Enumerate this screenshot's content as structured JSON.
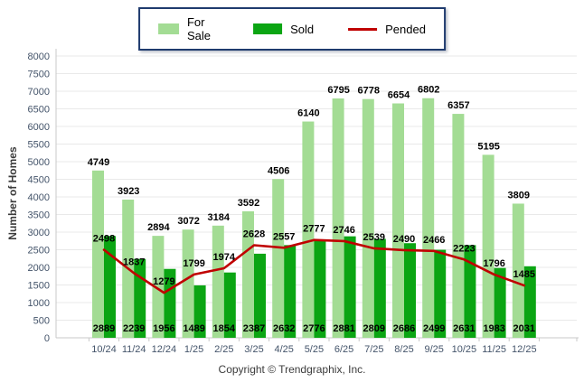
{
  "legend": {
    "position": "top-center",
    "items": [
      "For Sale",
      "Sold",
      "Pended"
    ]
  },
  "y_axis": {
    "title": "Number of Homes",
    "min": 0,
    "max": 8000,
    "step": 500
  },
  "footer": {
    "copyright": "Copyright © Trendgraphix, Inc."
  },
  "colors": {
    "for_sale": "#A3DC94",
    "sold": "#0BA513",
    "pended": "#C00000",
    "gridline": "#E9E9E9",
    "axis_line": "#C9C9C9",
    "tick_label": "#44546A",
    "value_label": "#000000",
    "legend_border": "#1F3B6E"
  },
  "chart_data": {
    "type": "bar",
    "subtype": "grouped bars with overlaid line",
    "categories": [
      "10/24",
      "11/24",
      "12/24",
      "1/25",
      "2/25",
      "3/25",
      "4/25",
      "5/25",
      "6/25",
      "7/25",
      "8/25",
      "9/25",
      "10/25",
      "11/25",
      "12/25"
    ],
    "series": [
      {
        "name": "For Sale",
        "type": "bar",
        "color": "#A3DC94",
        "values": [
          4749,
          3923,
          2894,
          3072,
          3184,
          3592,
          4506,
          6140,
          6795,
          6778,
          6654,
          6802,
          6357,
          5195,
          3809
        ]
      },
      {
        "name": "Sold",
        "type": "bar",
        "color": "#0BA513",
        "values": [
          2889,
          2239,
          1956,
          1489,
          1854,
          2387,
          2632,
          2776,
          2881,
          2809,
          2686,
          2499,
          2631,
          1983,
          2031
        ]
      },
      {
        "name": "Pended",
        "type": "line",
        "color": "#C00000",
        "values": [
          2498,
          1837,
          1279,
          1799,
          1974,
          2628,
          2557,
          2777,
          2746,
          2539,
          2490,
          2466,
          2223,
          1796,
          1485
        ]
      }
    ],
    "title": "",
    "xlabel": "",
    "ylabel": "Number of Homes",
    "ylim": [
      0,
      8000
    ],
    "ytick_step": 500,
    "grid": "horizontal",
    "legend_position": "top-center",
    "value_labels": "shown for all series"
  }
}
